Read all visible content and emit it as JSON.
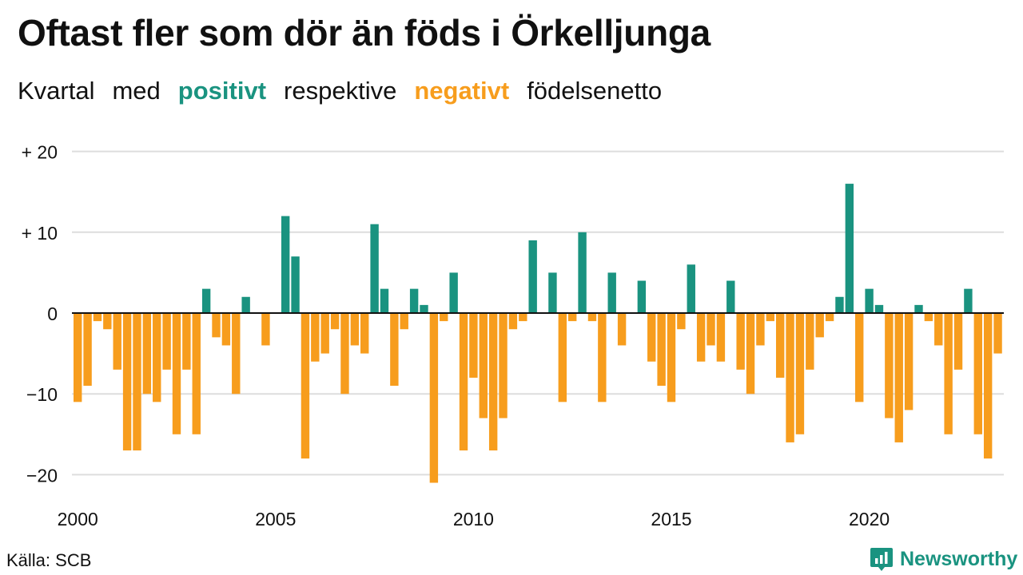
{
  "title": "Oftast fler som dör än föds i Örkelljunga",
  "subtitle": {
    "w1": "Kvartal",
    "w2": "med",
    "positive": "positivt",
    "w3": "respektive",
    "negative": "negativt",
    "w4": "födelsenetto"
  },
  "source": "Källa: SCB",
  "brand": "Newsworthy",
  "colors": {
    "positive": "#1a9380",
    "negative": "#f79d1d",
    "grid": "#dddddd",
    "axis": "#111111"
  },
  "chart_data": {
    "type": "bar",
    "x_start_year": 2000,
    "periods_per_year": 4,
    "ylim": [
      -22,
      21
    ],
    "yticks": [
      {
        "value": 20,
        "label": "+ 20"
      },
      {
        "value": 10,
        "label": "+ 10"
      },
      {
        "value": 0,
        "label": "0"
      },
      {
        "value": -10,
        "label": "−10"
      },
      {
        "value": -20,
        "label": "−20"
      }
    ],
    "xticks": [
      "2000",
      "2005",
      "2010",
      "2015",
      "2020"
    ],
    "values": [
      -11,
      -9,
      -1,
      -2,
      -7,
      -17,
      -17,
      -10,
      -11,
      -7,
      -15,
      -7,
      -15,
      3,
      -3,
      -4,
      -10,
      2,
      0,
      -4,
      0,
      12,
      7,
      -18,
      -6,
      -5,
      -2,
      -10,
      -4,
      -5,
      11,
      3,
      -9,
      -2,
      3,
      1,
      -21,
      -1,
      5,
      -17,
      -8,
      -13,
      -17,
      -13,
      -2,
      -1,
      9,
      0,
      5,
      -11,
      -1,
      10,
      -1,
      -11,
      5,
      -4,
      0,
      4,
      -6,
      -9,
      -11,
      -2,
      6,
      -6,
      -4,
      -6,
      4,
      -7,
      -10,
      -4,
      -1,
      -8,
      -16,
      -15,
      -7,
      -3,
      -1,
      2,
      16,
      -11,
      3,
      1,
      -13,
      -16,
      -12,
      1,
      -1,
      -4,
      -15,
      -7,
      3,
      -15,
      -18,
      -5
    ]
  }
}
